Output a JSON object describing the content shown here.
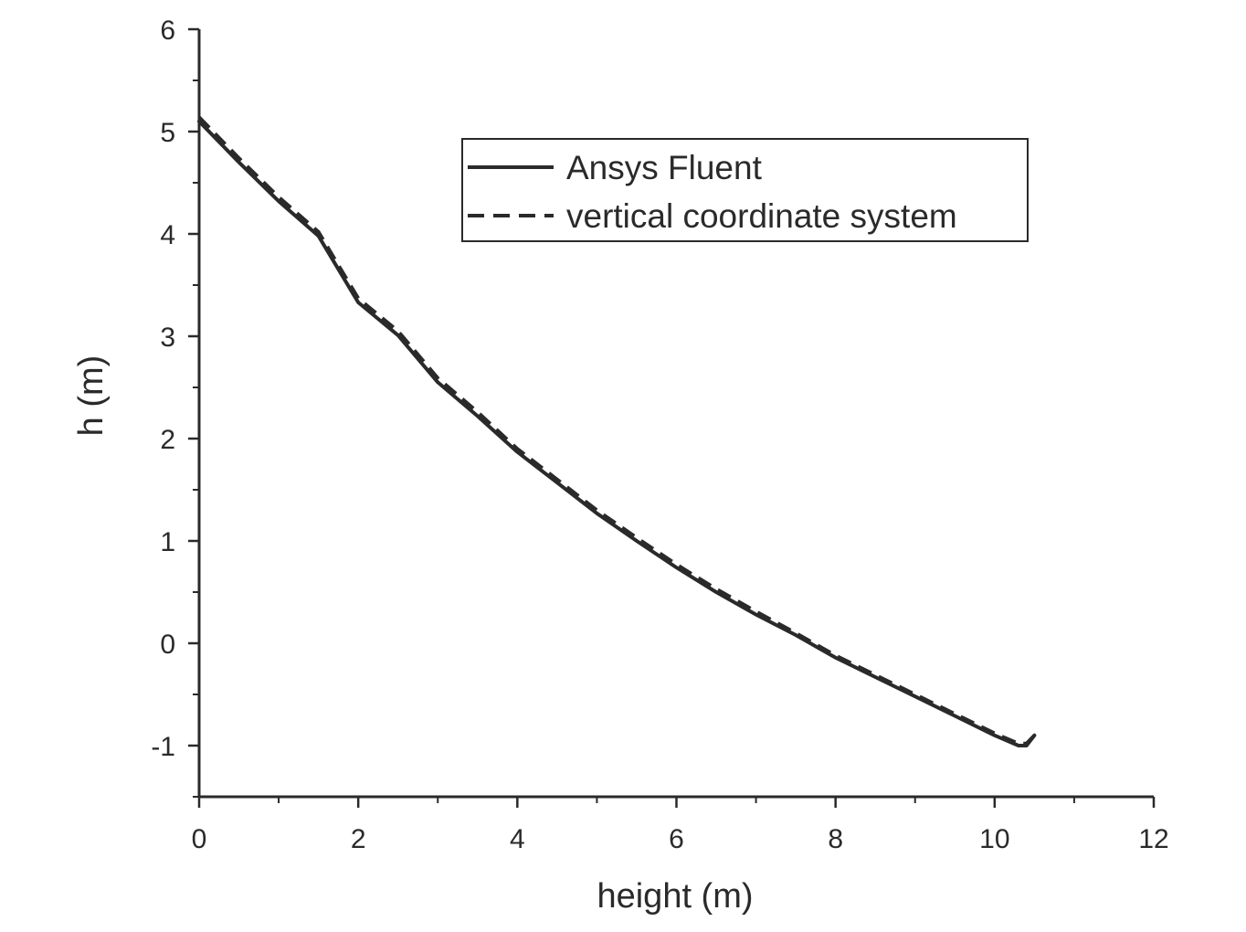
{
  "chart_data": {
    "type": "line",
    "xlabel": "height (m)",
    "ylabel": "h (m)",
    "xlim": [
      0,
      12
    ],
    "ylim": [
      -1.5,
      6
    ],
    "xticks": [
      0,
      2,
      4,
      6,
      8,
      10,
      12
    ],
    "yticks": [
      -1,
      0,
      1,
      2,
      3,
      4,
      5,
      6
    ],
    "grid": false,
    "legend_position": "top-center",
    "line_color": "#2a2a2a",
    "series": [
      {
        "name": "Ansys Fluent",
        "style": "solid",
        "x": [
          0,
          0.5,
          1,
          1.5,
          2,
          2.5,
          3,
          3.5,
          4,
          4.5,
          5,
          5.5,
          6,
          6.5,
          7,
          7.5,
          8,
          8.5,
          9,
          9.5,
          10,
          10.3,
          10.4,
          10.5
        ],
        "y": [
          5.1,
          4.7,
          4.32,
          3.98,
          3.33,
          3.01,
          2.55,
          2.22,
          1.87,
          1.57,
          1.27,
          1.0,
          0.74,
          0.5,
          0.28,
          0.08,
          -0.14,
          -0.33,
          -0.52,
          -0.71,
          -0.9,
          -1.0,
          -1.0,
          -0.9
        ]
      },
      {
        "name": "vertical coordinate system",
        "style": "dashed",
        "x": [
          0,
          0.5,
          1,
          1.5,
          2,
          2.5,
          3,
          3.5,
          4,
          4.5,
          5,
          5.5,
          6,
          6.5,
          7,
          7.5,
          8,
          8.5,
          9,
          9.5,
          10,
          10.3,
          10.4,
          10.5
        ],
        "y": [
          5.14,
          4.74,
          4.36,
          4.02,
          3.37,
          3.05,
          2.59,
          2.26,
          1.9,
          1.6,
          1.3,
          1.03,
          0.77,
          0.53,
          0.31,
          0.1,
          -0.12,
          -0.31,
          -0.5,
          -0.69,
          -0.88,
          -0.98,
          -0.98,
          -0.9
        ]
      }
    ]
  }
}
